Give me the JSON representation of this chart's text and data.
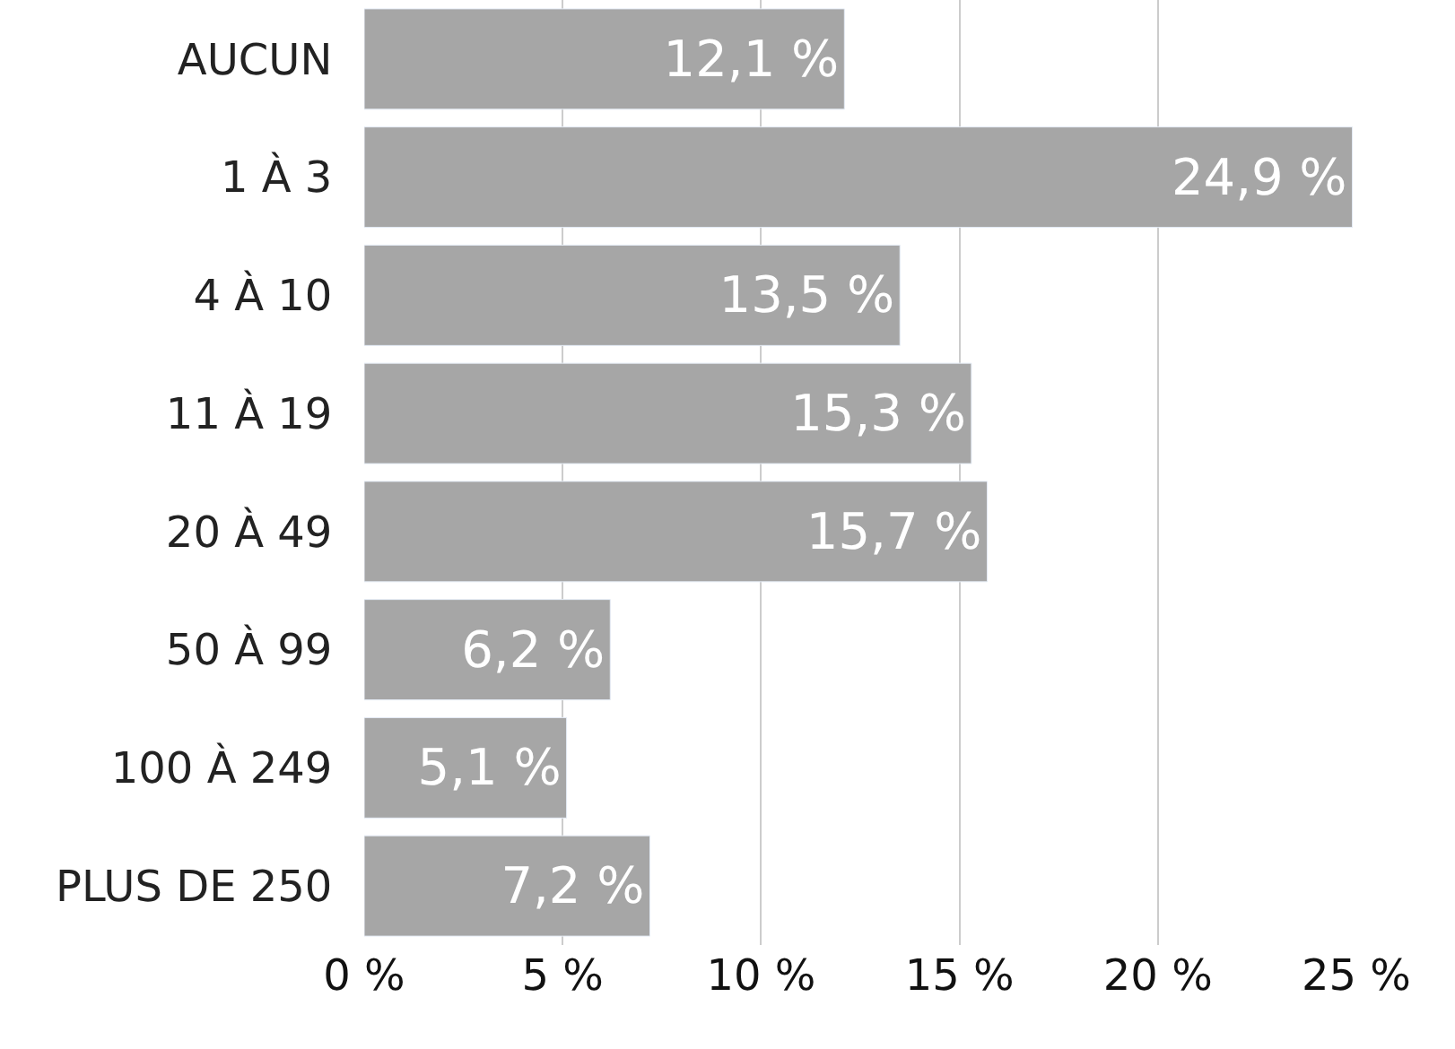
{
  "chart_data": {
    "type": "bar",
    "orientation": "horizontal",
    "categories": [
      "AUCUN",
      "1 À 3",
      "4 À 10",
      "11 À 19",
      "20 À 49",
      "50 À 99",
      "100 À 249",
      "PLUS DE 250"
    ],
    "values": [
      12.1,
      24.9,
      13.5,
      15.3,
      15.7,
      6.2,
      5.1,
      7.2
    ],
    "value_labels": [
      "12,1 %",
      "24,9 %",
      "13,5 %",
      "15,3 %",
      "15,7 %",
      "6,2 %",
      "5,1 %",
      "7,2 %"
    ],
    "color": "#a6a6a6",
    "xlim": [
      0,
      25
    ],
    "xticks": [
      {
        "value": 0,
        "label": "0 %"
      },
      {
        "value": 5,
        "label": "5 %"
      },
      {
        "value": 10,
        "label": "10 %"
      },
      {
        "value": 15,
        "label": "15 %"
      },
      {
        "value": 20,
        "label": "20 %"
      },
      {
        "value": 25,
        "label": "25 %"
      }
    ],
    "grid": "x",
    "legend": false
  }
}
